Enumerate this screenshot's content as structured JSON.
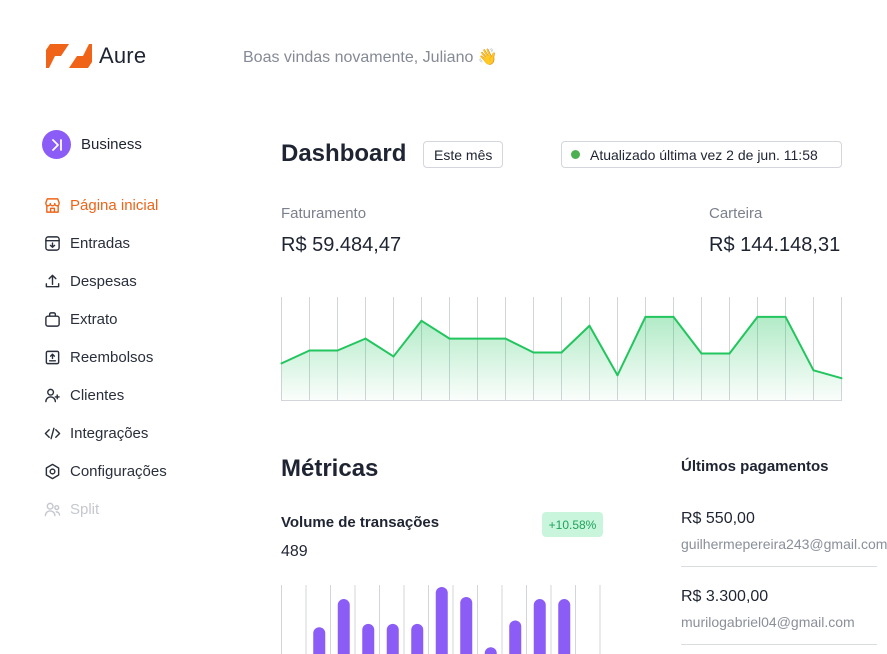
{
  "app": {
    "name": "Aure",
    "brand_color": "#ef6418",
    "welcome": "Boas vindas novamente, Juliano 👋"
  },
  "account": {
    "label": "Business",
    "icon": "business-arrow-icon",
    "color": "#8b5cf6"
  },
  "sidebar": {
    "items": [
      {
        "label": "Página inicial",
        "icon": "store-icon",
        "state": "active"
      },
      {
        "label": "Entradas",
        "icon": "inbox-download-icon",
        "state": "normal"
      },
      {
        "label": "Despesas",
        "icon": "upload-arrow-icon",
        "state": "normal"
      },
      {
        "label": "Extrato",
        "icon": "bag-icon",
        "state": "normal"
      },
      {
        "label": "Reembolsos",
        "icon": "receipt-icon",
        "state": "normal"
      },
      {
        "label": "Clientes",
        "icon": "users-icon",
        "state": "normal"
      },
      {
        "label": "Integrações",
        "icon": "code-icon",
        "state": "normal"
      },
      {
        "label": "Configurações",
        "icon": "hexagon-settings-icon",
        "state": "normal"
      },
      {
        "label": "Split",
        "icon": "split-users-icon",
        "state": "disabled"
      }
    ]
  },
  "dashboard": {
    "title": "Dashboard",
    "period_button": "Este mês",
    "status": "Atualizado última vez 2 de jun. 11:58",
    "status_color": "#4caf50",
    "revenue": {
      "label": "Faturamento",
      "value": "R$ 59.484,47"
    },
    "wallet": {
      "label": "Carteira",
      "value": "R$ 144.148,31"
    }
  },
  "metrics": {
    "title": "Métricas",
    "volume": {
      "label": "Volume de transações",
      "value": "489",
      "change": "+10.58%"
    }
  },
  "payments": {
    "title": "Últimos pagamentos",
    "items": [
      {
        "amount": "R$ 550,00",
        "email": "guilhermepereira243@gmail.com"
      },
      {
        "amount": "R$ 3.300,00",
        "email": "murilogabriel04@gmail.com"
      }
    ]
  },
  "chart_data": [
    {
      "type": "area",
      "color": "#22c55e",
      "grid": true,
      "ylim": [
        0,
        100
      ],
      "values": [
        37,
        50,
        50,
        62,
        44,
        80,
        62,
        62,
        62,
        48,
        48,
        75,
        25,
        84,
        84,
        47,
        47,
        84,
        84,
        30,
        22
      ]
    },
    {
      "type": "bar",
      "color": "#8b5cf6",
      "grid": true,
      "ylim": [
        0,
        100
      ],
      "values": [
        null,
        40,
        82,
        45,
        45,
        45,
        100,
        85,
        10,
        50,
        82,
        82
      ]
    }
  ]
}
